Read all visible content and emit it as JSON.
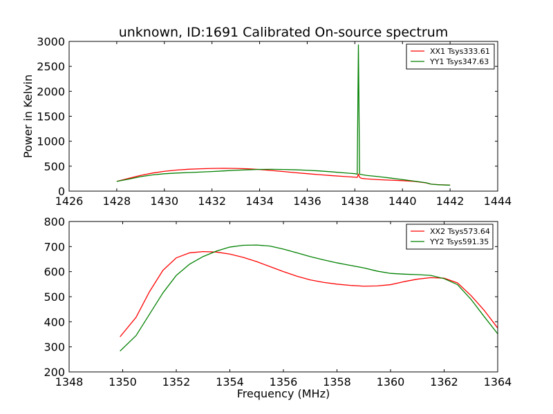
{
  "chart_data": [
    {
      "type": "line",
      "title": "unknown, ID:1691 Calibrated On-source spectrum",
      "xlabel": "",
      "ylabel": "Power in Kelvin",
      "xlim": [
        1426,
        1444
      ],
      "ylim": [
        0,
        3000
      ],
      "xticks": [
        1426,
        1428,
        1430,
        1432,
        1434,
        1436,
        1438,
        1440,
        1442,
        1444
      ],
      "yticks": [
        0,
        500,
        1000,
        1500,
        2000,
        2500,
        3000
      ],
      "grid": false,
      "legend_position": "top-right",
      "series": [
        {
          "name": "XX1 Tsys333.61",
          "color": "#ff0000",
          "x": [
            1428.0,
            1428.5,
            1429.0,
            1429.5,
            1430.0,
            1430.5,
            1431.0,
            1431.5,
            1432.0,
            1432.5,
            1433.0,
            1433.5,
            1434.0,
            1434.5,
            1435.0,
            1435.5,
            1436.0,
            1436.5,
            1437.0,
            1437.5,
            1438.0,
            1438.1,
            1438.15,
            1438.2,
            1438.25,
            1438.3,
            1438.5,
            1439.0,
            1439.5,
            1440.0,
            1440.5,
            1441.0,
            1441.2,
            1441.5,
            1442.0
          ],
          "y": [
            195,
            255,
            315,
            362,
            398,
            422,
            438,
            448,
            455,
            458,
            455,
            448,
            433,
            413,
            392,
            370,
            350,
            330,
            312,
            295,
            280,
            275,
            340,
            278,
            262,
            255,
            245,
            230,
            220,
            210,
            195,
            165,
            140,
            130,
            120
          ]
        },
        {
          "name": "YY1 Tsys347.63",
          "color": "#008000",
          "x": [
            1428.0,
            1428.5,
            1429.0,
            1429.5,
            1430.0,
            1430.5,
            1431.0,
            1431.5,
            1432.0,
            1432.5,
            1433.0,
            1433.5,
            1434.0,
            1434.5,
            1435.0,
            1435.5,
            1436.0,
            1436.5,
            1437.0,
            1437.5,
            1438.0,
            1438.1,
            1438.15,
            1438.2,
            1438.25,
            1438.3,
            1438.5,
            1439.0,
            1439.5,
            1440.0,
            1440.5,
            1441.0,
            1441.2,
            1441.5,
            1442.0
          ],
          "y": [
            195,
            240,
            290,
            325,
            348,
            362,
            372,
            382,
            392,
            405,
            418,
            428,
            435,
            437,
            434,
            428,
            418,
            405,
            388,
            368,
            350,
            340,
            2930,
            340,
            335,
            330,
            315,
            290,
            262,
            232,
            200,
            168,
            140,
            128,
            118
          ]
        }
      ]
    },
    {
      "type": "line",
      "title": "",
      "xlabel": "Frequency (MHz)",
      "ylabel": "",
      "xlim": [
        1348,
        1364
      ],
      "ylim": [
        200,
        800
      ],
      "xticks": [
        1348,
        1350,
        1352,
        1354,
        1356,
        1358,
        1360,
        1362,
        1364
      ],
      "yticks": [
        200,
        300,
        400,
        500,
        600,
        700,
        800
      ],
      "grid": false,
      "legend_position": "top-right",
      "series": [
        {
          "name": "XX2 Tsys573.64",
          "color": "#ff0000",
          "x": [
            1349.9,
            1350.5,
            1351.0,
            1351.5,
            1352.0,
            1352.5,
            1353.0,
            1353.5,
            1354.0,
            1354.5,
            1355.0,
            1355.5,
            1356.0,
            1356.5,
            1357.0,
            1357.5,
            1358.0,
            1358.5,
            1359.0,
            1359.5,
            1360.0,
            1360.5,
            1361.0,
            1361.5,
            1362.0,
            1362.5,
            1363.0,
            1363.5,
            1364.0
          ],
          "y": [
            340,
            418,
            520,
            605,
            655,
            675,
            680,
            678,
            670,
            657,
            640,
            620,
            600,
            582,
            567,
            557,
            550,
            545,
            542,
            543,
            548,
            560,
            570,
            576,
            574,
            555,
            505,
            445,
            375
          ]
        },
        {
          "name": "YY2 Tsys591.35",
          "color": "#008000",
          "x": [
            1349.9,
            1350.5,
            1351.0,
            1351.5,
            1352.0,
            1352.5,
            1353.0,
            1353.5,
            1354.0,
            1354.5,
            1355.0,
            1355.5,
            1356.0,
            1356.5,
            1357.0,
            1357.5,
            1358.0,
            1358.5,
            1359.0,
            1359.5,
            1360.0,
            1360.5,
            1361.0,
            1361.5,
            1362.0,
            1362.5,
            1363.0,
            1363.5,
            1364.0
          ],
          "y": [
            283,
            345,
            430,
            515,
            585,
            630,
            660,
            682,
            698,
            705,
            706,
            702,
            690,
            675,
            660,
            647,
            635,
            625,
            615,
            602,
            593,
            590,
            588,
            585,
            572,
            548,
            490,
            420,
            352
          ]
        }
      ]
    }
  ]
}
